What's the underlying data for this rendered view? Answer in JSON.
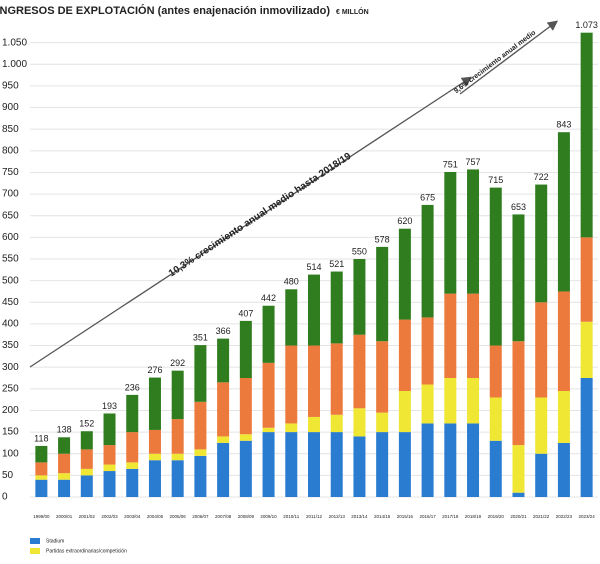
{
  "chart_data": {
    "type": "stacked_bar",
    "title": "INGRESOS DE EXPLOTACIÓN (antes enajenación inmovilizado)",
    "subtitle": "€ MILLÓN",
    "categories": [
      "1999/00",
      "2000/01",
      "2001/02",
      "2002/03",
      "2003/04",
      "2004/05",
      "2005/06",
      "2006/07",
      "2007/08",
      "2008/09",
      "2009/10",
      "2010/11",
      "2011/12",
      "2012/13",
      "2013/14",
      "2014/15",
      "2015/16",
      "2016/17",
      "2017/18",
      "2018/19",
      "2019/20",
      "2020/21",
      "2021/22",
      "2022/23",
      "2023/24"
    ],
    "series": [
      {
        "name": "Stadium",
        "color": "#2a7cd0",
        "values": [
          40,
          40,
          50,
          60,
          65,
          85,
          85,
          95,
          125,
          130,
          150,
          150,
          150,
          150,
          140,
          150,
          150,
          170,
          170,
          170,
          130,
          10,
          100,
          125,
          275
        ]
      },
      {
        "name": "Partidas extraordinarias/competición",
        "color": "#f0e634",
        "values": [
          10,
          15,
          15,
          15,
          15,
          15,
          15,
          15,
          15,
          15,
          10,
          20,
          35,
          40,
          65,
          45,
          95,
          90,
          105,
          105,
          100,
          110,
          130,
          120,
          130
        ]
      },
      {
        "color": "#ec7a3c",
        "values": [
          30,
          45,
          45,
          45,
          70,
          55,
          80,
          110,
          125,
          130,
          150,
          180,
          165,
          165,
          170,
          165,
          165,
          155,
          195,
          195,
          120,
          240,
          220,
          230,
          195
        ]
      },
      {
        "color": "#2f7d1f",
        "values": [
          38,
          38,
          42,
          73,
          86,
          121,
          112,
          131,
          101,
          132,
          132,
          130,
          164,
          166,
          175,
          218,
          210,
          260,
          281,
          287,
          365,
          293,
          272,
          368,
          473
        ]
      }
    ],
    "totals": {
      "values": [
        118,
        138,
        152,
        193,
        236,
        276,
        292,
        351,
        366,
        407,
        442,
        480,
        514,
        521,
        550,
        578,
        620,
        675,
        751,
        757,
        715,
        653,
        722,
        843,
        1073
      ],
      "value_labels": [
        "118",
        "138",
        "152",
        "193",
        "236",
        "276",
        "292",
        "351",
        "366",
        "407",
        "442",
        "480",
        "514",
        "521",
        "550",
        "578",
        "620",
        "675",
        "751",
        "757",
        "715",
        "653",
        "722",
        "843",
        "1.073"
      ]
    },
    "annotations": [
      "10,3% crecimiento anual medio hasta 2018/19",
      "9,6% crecimiento anual medio"
    ],
    "ylim": [
      0,
      1100
    ],
    "yticks": [
      0,
      50,
      100,
      150,
      200,
      250,
      300,
      350,
      400,
      450,
      500,
      550,
      600,
      650,
      700,
      750,
      800,
      850,
      900,
      950,
      {
        "value": 1000,
        "label": "1.000"
      },
      {
        "value": 1050,
        "label": "1.050"
      }
    ],
    "grid": true
  }
}
